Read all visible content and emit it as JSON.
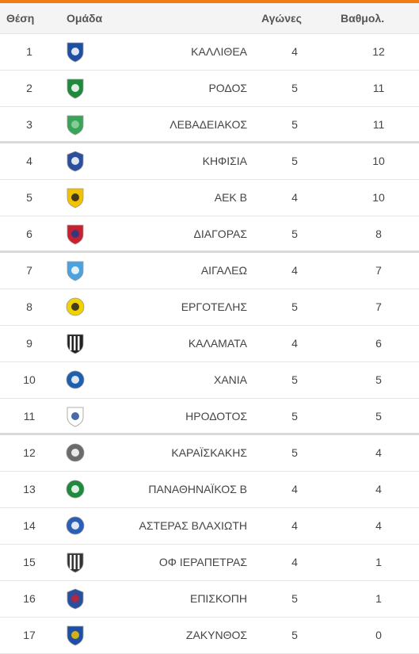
{
  "header": {
    "position": "Θέση",
    "team": "Ομάδα",
    "games": "Αγώνες",
    "points": "Βαθμολ."
  },
  "rows": [
    {
      "pos": "1",
      "team": "ΚΑΛΛΙΘΕΑ",
      "games": "4",
      "points": "12",
      "icon": "kallithea-crest-icon",
      "c1": "#1e4fa3",
      "c2": "#ffffff",
      "shape": "shield"
    },
    {
      "pos": "2",
      "team": "ΡΟΔΟΣ",
      "games": "5",
      "points": "11",
      "icon": "rodos-crest-icon",
      "c1": "#1e8a3c",
      "c2": "#ffffff",
      "shape": "shield"
    },
    {
      "pos": "3",
      "team": "ΛΕΒΑΔΕΙΑΚΟΣ",
      "games": "5",
      "points": "11",
      "icon": "levadiakos-crest-icon",
      "c1": "#3aa35a",
      "c2": "#8fd3a0",
      "shape": "shield"
    },
    {
      "pos": "4",
      "team": "ΚΗΦΙΣΙΑ",
      "games": "5",
      "points": "10",
      "icon": "kifisia-crest-icon",
      "c1": "#2a4f9e",
      "c2": "#ffffff",
      "shape": "badge"
    },
    {
      "pos": "5",
      "team": "ΑΕΚ Β",
      "games": "4",
      "points": "10",
      "icon": "aek-crest-icon",
      "c1": "#f2c200",
      "c2": "#222222",
      "shape": "shield"
    },
    {
      "pos": "6",
      "team": "ΔΙΑΓΟΡΑΣ",
      "games": "5",
      "points": "8",
      "icon": "diagoras-crest-icon",
      "c1": "#c8202f",
      "c2": "#1e3c8c",
      "shape": "shield"
    },
    {
      "pos": "7",
      "team": "ΑΙΓΑΛΕΩ",
      "games": "4",
      "points": "7",
      "icon": "aigaleo-crest-icon",
      "c1": "#4aa3df",
      "c2": "#ffffff",
      "shape": "shield"
    },
    {
      "pos": "8",
      "team": "ΕΡΓΟΤΕΛΗΣ",
      "games": "5",
      "points": "7",
      "icon": "ergotelis-crest-icon",
      "c1": "#f0d200",
      "c2": "#222222",
      "shape": "circle"
    },
    {
      "pos": "9",
      "team": "ΚΑΛΑΜΑΤΑ",
      "games": "4",
      "points": "6",
      "icon": "kalamata-crest-icon",
      "c1": "#222222",
      "c2": "#ffffff",
      "shape": "stripes"
    },
    {
      "pos": "10",
      "team": "ΧΑΝΙΑ",
      "games": "5",
      "points": "5",
      "icon": "chania-crest-icon",
      "c1": "#1f5fb0",
      "c2": "#ffffff",
      "shape": "circle"
    },
    {
      "pos": "11",
      "team": "ΗΡΟΔΟΤΟΣ",
      "games": "5",
      "points": "5",
      "icon": "irodotos-crest-icon",
      "c1": "#ffffff",
      "c2": "#2a4f9e",
      "shape": "shield"
    },
    {
      "pos": "12",
      "team": "ΚΑΡΑΪΣΚΑΚΗΣ",
      "games": "5",
      "points": "4",
      "icon": "karaiskakis-crest-icon",
      "c1": "#6b6b6b",
      "c2": "#ffffff",
      "shape": "circle"
    },
    {
      "pos": "13",
      "team": "ΠΑΝΑΘΗΝΑΪΚΟΣ Β",
      "games": "4",
      "points": "4",
      "icon": "panathinaikos-crest-icon",
      "c1": "#1e8a3c",
      "c2": "#ffffff",
      "shape": "circle"
    },
    {
      "pos": "14",
      "team": "ΑΣΤΕΡΑΣ ΒΛΑΧΙΩΤΗ",
      "games": "4",
      "points": "4",
      "icon": "asteras-vlachioti-crest-icon",
      "c1": "#2a5fb5",
      "c2": "#ffffff",
      "shape": "circle"
    },
    {
      "pos": "15",
      "team": "ΟΦ ΙΕΡΑΠΕΤΡΑΣ",
      "games": "4",
      "points": "1",
      "icon": "of-ierapetras-crest-icon",
      "c1": "#333333",
      "c2": "#ffffff",
      "shape": "stripes"
    },
    {
      "pos": "16",
      "team": "ΕΠΙΣΚΟΠΗ",
      "games": "5",
      "points": "1",
      "icon": "episkopi-crest-icon",
      "c1": "#2a4f9e",
      "c2": "#c8202f",
      "shape": "badge"
    },
    {
      "pos": "17",
      "team": "ΖΑΚΥΝΘΟΣ",
      "games": "5",
      "points": "0",
      "icon": "zakynthos-crest-icon",
      "c1": "#1e4fa3",
      "c2": "#f2c200",
      "shape": "shield"
    }
  ]
}
